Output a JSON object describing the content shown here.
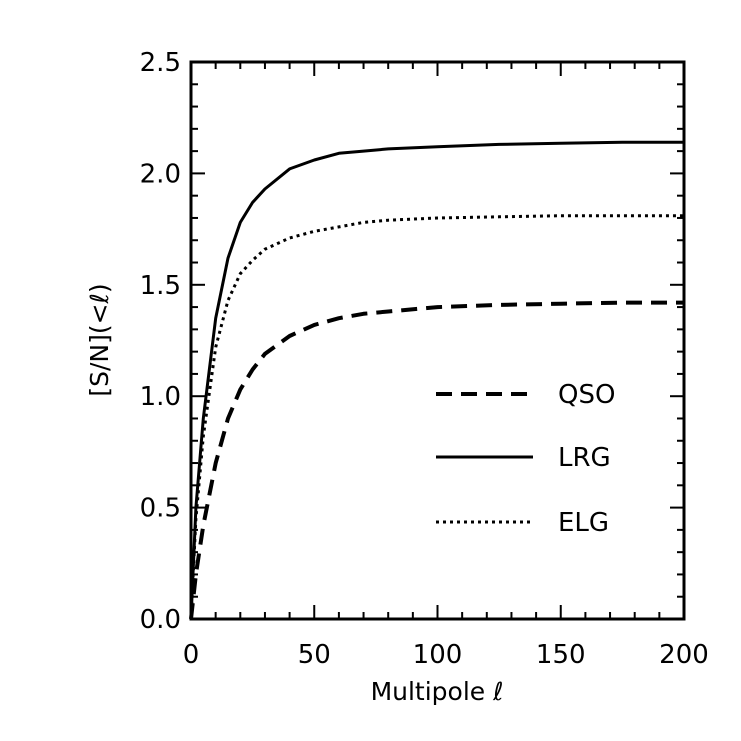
{
  "chart_data": {
    "type": "line",
    "xlabel": "Multipole ℓ",
    "ylabel": "[S/N](<ℓ)",
    "xlim": [
      0,
      200
    ],
    "ylim": [
      0.0,
      2.5
    ],
    "xticks": [
      "0",
      "50",
      "100",
      "150",
      "200"
    ],
    "yticks": [
      "0.0",
      "0.5",
      "1.0",
      "1.5",
      "2.0",
      "2.5"
    ],
    "grid": false,
    "legend_position": "center-right",
    "series": [
      {
        "name": "QSO",
        "style": "dashed",
        "x": [
          0,
          2,
          5,
          10,
          15,
          20,
          25,
          30,
          40,
          50,
          60,
          70,
          80,
          100,
          125,
          150,
          175,
          200
        ],
        "y": [
          0.0,
          0.2,
          0.42,
          0.7,
          0.9,
          1.03,
          1.12,
          1.19,
          1.27,
          1.32,
          1.35,
          1.37,
          1.38,
          1.4,
          1.41,
          1.415,
          1.42,
          1.42
        ]
      },
      {
        "name": "LRG",
        "style": "solid",
        "x": [
          0,
          2,
          5,
          10,
          15,
          20,
          25,
          30,
          40,
          50,
          60,
          70,
          80,
          100,
          125,
          150,
          175,
          200
        ],
        "y": [
          0.0,
          0.5,
          0.9,
          1.35,
          1.62,
          1.78,
          1.87,
          1.93,
          2.02,
          2.06,
          2.09,
          2.1,
          2.11,
          2.12,
          2.13,
          2.135,
          2.14,
          2.14
        ]
      },
      {
        "name": "ELG",
        "style": "dotted",
        "x": [
          0,
          2,
          5,
          10,
          15,
          20,
          25,
          30,
          40,
          50,
          60,
          70,
          80,
          100,
          125,
          150,
          175,
          200
        ],
        "y": [
          0.0,
          0.45,
          0.82,
          1.22,
          1.43,
          1.55,
          1.61,
          1.66,
          1.71,
          1.74,
          1.76,
          1.78,
          1.79,
          1.8,
          1.805,
          1.81,
          1.81,
          1.81
        ]
      }
    ]
  }
}
